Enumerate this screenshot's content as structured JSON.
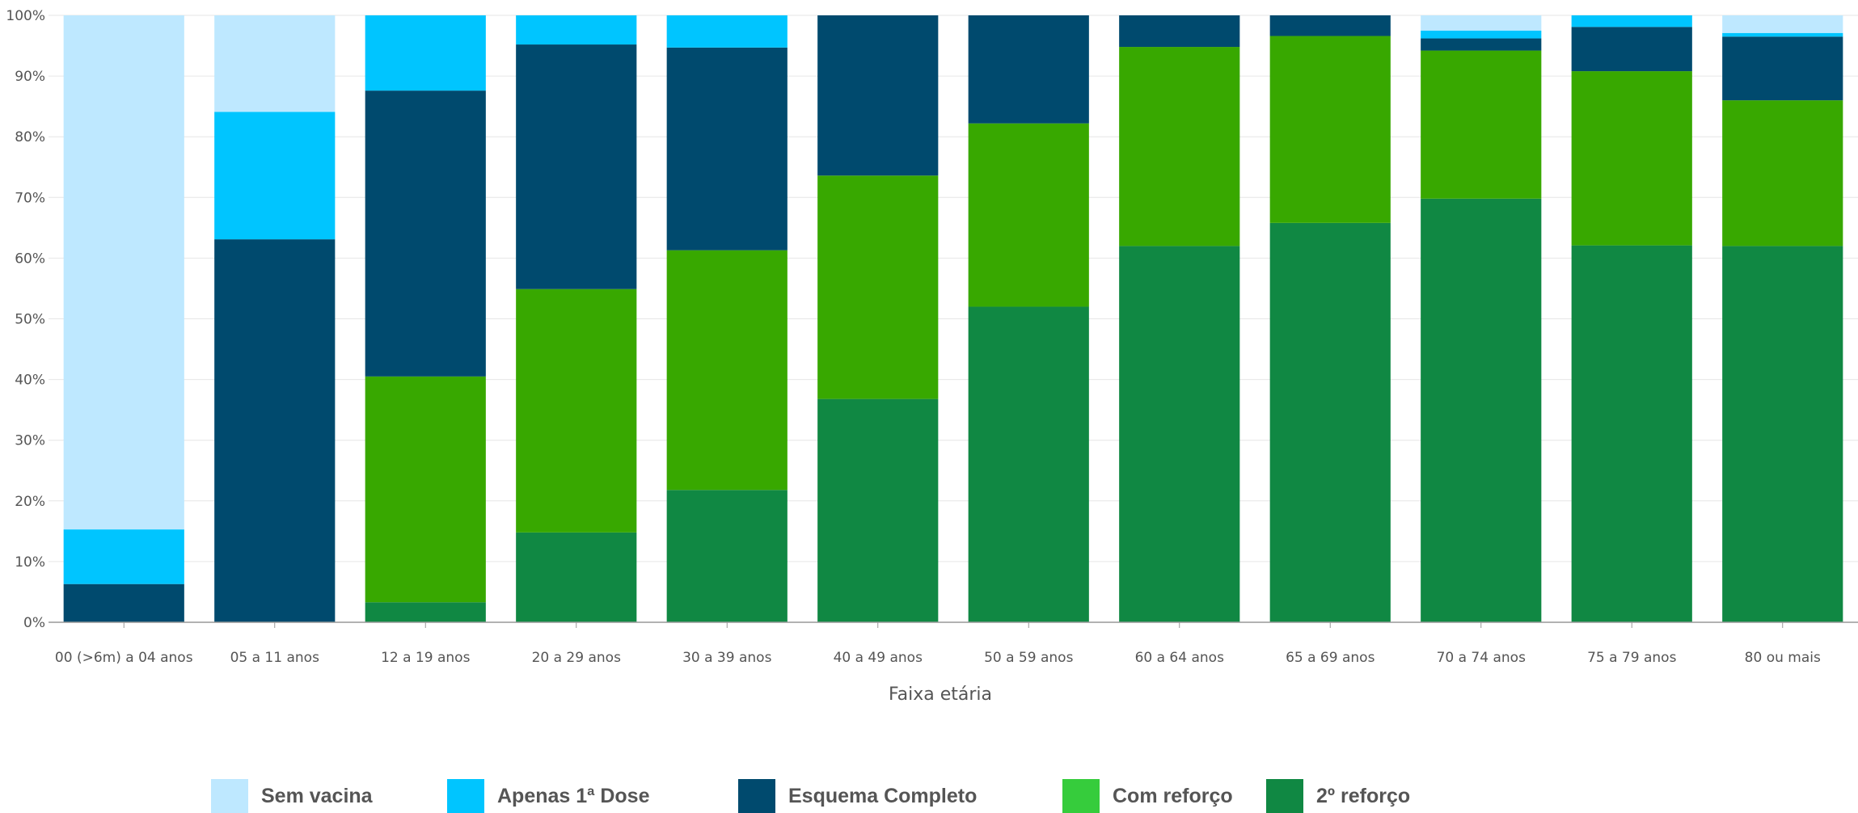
{
  "chart_data": {
    "type": "bar",
    "stacked": true,
    "normalized": true,
    "title": "",
    "xlabel": "Faixa etária",
    "ylabel": "",
    "ylim": [
      0,
      100
    ],
    "yticks": [
      "0%",
      "10%",
      "20%",
      "30%",
      "40%",
      "50%",
      "60%",
      "70%",
      "80%",
      "90%",
      "100%"
    ],
    "grid": true,
    "legend_position": "bottom",
    "categories": [
      "00 (>6m) a 04 anos",
      "05 a 11 anos",
      "12 a 19 anos",
      "20 a 29 anos",
      "30 a 39 anos",
      "40 a 49 anos",
      "50 a 59 anos",
      "60 a 64 anos",
      "65 a 69 anos",
      "70 a 74 anos",
      "75 a 79 anos",
      "80 ou mais"
    ],
    "series": [
      {
        "name": "2º reforço",
        "color": "#108843",
        "values": [
          0,
          0,
          3.3,
          14.8,
          21.8,
          36.8,
          52,
          62,
          65.8,
          69.8,
          62.1,
          62
        ]
      },
      {
        "name": "Com reforço",
        "color": "#36cc3c",
        "values": [
          0,
          0,
          0,
          0,
          0,
          0,
          0,
          0,
          0,
          0,
          0,
          0
        ]
      },
      {
        "name": "Com reforço",
        "color": "#38a800",
        "values": [
          0,
          0,
          37.2,
          40.1,
          39.5,
          36.8,
          30.2,
          32.8,
          30.8,
          24.4,
          28.7,
          24
        ]
      },
      {
        "name": "Esquema Completo",
        "color": "#004a6e",
        "values": [
          6.3,
          63.1,
          47.1,
          40.3,
          33.4,
          26.4,
          17.8,
          5.2,
          3.4,
          2,
          7.3,
          10.5
        ]
      },
      {
        "name": "Apenas 1ª Dose",
        "color": "#00c5ff",
        "values": [
          9,
          21,
          12.4,
          4.8,
          5.3,
          0,
          0,
          0,
          0,
          1.3,
          1.9,
          0.6
        ]
      },
      {
        "name": "Sem vacina",
        "color": "#bee8ff",
        "values": [
          84.7,
          15.9,
          0,
          0,
          0,
          0,
          0,
          0,
          0,
          2.5,
          0,
          2.9
        ]
      }
    ],
    "legend": [
      {
        "label": "Sem vacina",
        "color": "#bee8ff"
      },
      {
        "label": "Apenas 1ª Dose",
        "color": "#00c5ff"
      },
      {
        "label": "Esquema Completo",
        "color": "#004a6e"
      },
      {
        "label": "Com reforço",
        "color": "#36cc3c"
      },
      {
        "label": "2º reforço",
        "color": "#108843"
      }
    ]
  }
}
